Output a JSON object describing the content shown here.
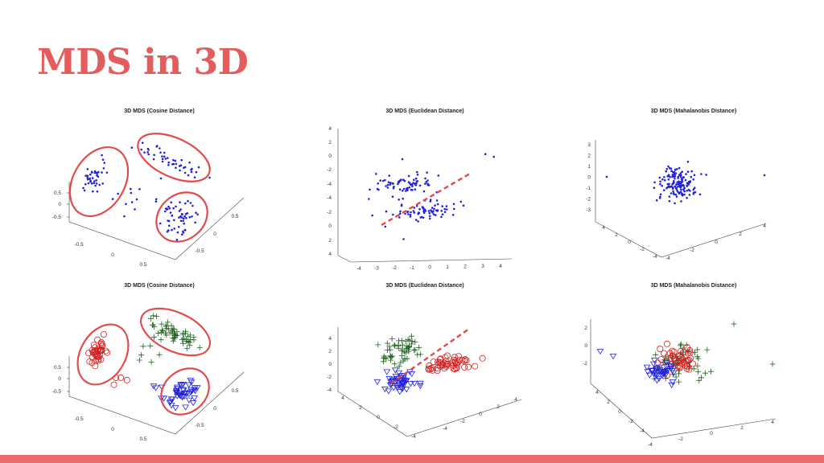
{
  "slide": {
    "title": "MDS in 3D"
  },
  "colors": {
    "accent": "#e35d5d",
    "blue": "#2222dd",
    "red": "#d42020",
    "green": "#1f5f1f"
  },
  "chart_data": [
    {
      "id": "p1",
      "type": "scatter",
      "title": "3D MDS (Cosine Distance)",
      "markers": "dots",
      "highlight": "ellipses",
      "axes": {
        "z_ticks": [
          "0.5",
          "0",
          "-0.5"
        ],
        "x_ticks": [
          "-0.5",
          "0",
          "0.5"
        ],
        "y_ticks": [
          "0.5",
          "0",
          "-0.5"
        ]
      }
    },
    {
      "id": "p2",
      "type": "scatter",
      "title": "3D MDS (Euclidean Distance)",
      "markers": "dots",
      "highlight": "dashed-line",
      "axes": {
        "z_ticks": [
          "4",
          "2",
          "0",
          "-2",
          "-4",
          "-4",
          "-2",
          "0",
          "2",
          "4"
        ],
        "x_ticks": [
          "-4",
          "-3",
          "-2",
          "-1",
          "0",
          "1",
          "2",
          "3",
          "4"
        ]
      }
    },
    {
      "id": "p3",
      "type": "scatter",
      "title": "3D MDS (Mahalanobis Distance)",
      "markers": "dots",
      "highlight": "none",
      "axes": {
        "z_ticks": [
          "3",
          "2",
          "1",
          "0",
          "-1",
          "-2",
          "-3"
        ],
        "x_ticks": [
          "-4",
          "-2",
          "0",
          "2",
          "4"
        ],
        "y_ticks": [
          "4",
          "2",
          "0",
          "-2",
          "-4"
        ]
      }
    },
    {
      "id": "p4",
      "type": "scatter",
      "title": "3D MDS (Cosine Distance)",
      "markers": "classes",
      "highlight": "ellipses",
      "axes": {
        "z_ticks": [
          "0.5",
          "0",
          "-0.5"
        ],
        "x_ticks": [
          "-0.5",
          "0",
          "0.5"
        ],
        "y_ticks": [
          "0.5",
          "0",
          "-0.5"
        ]
      }
    },
    {
      "id": "p5",
      "type": "scatter",
      "title": "3D MDS (Euclidean Distance)",
      "markers": "classes",
      "highlight": "dashed-line",
      "axes": {
        "z_ticks": [
          "4",
          "2",
          "0",
          "-2",
          "-4"
        ],
        "x_ticks": [
          "-4",
          "-2",
          "0",
          "2",
          "4"
        ],
        "y_ticks": [
          "4",
          "2",
          "0",
          "-2",
          "-4"
        ]
      }
    },
    {
      "id": "p6",
      "type": "scatter",
      "title": "3D MDS (Mahalanobis Distance)",
      "markers": "classes",
      "highlight": "none",
      "axes": {
        "z_ticks": [
          "2",
          "0",
          "-2"
        ],
        "x_ticks": [
          "-4",
          "-2",
          "0",
          "2",
          "4"
        ],
        "y_ticks": [
          "4",
          "2",
          "0",
          "-2",
          "-4"
        ]
      }
    }
  ]
}
